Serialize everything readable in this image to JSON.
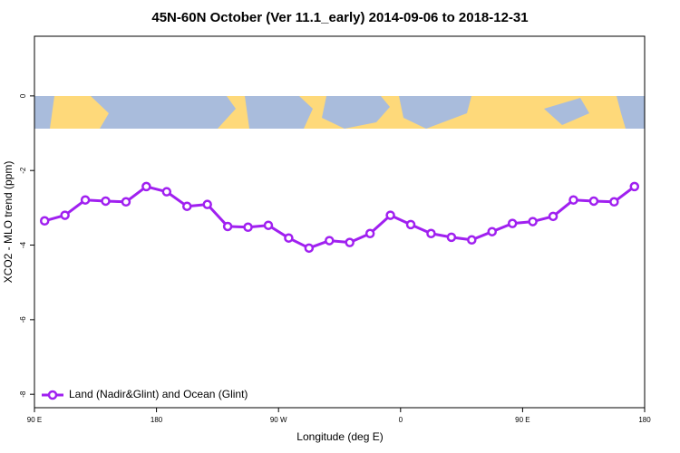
{
  "chart_data": {
    "type": "line",
    "title": "45N-60N October (Ver 11.1_early)   2014-09-06 to 2018-12-31",
    "x_label": "Longitude (deg E)",
    "y_label": "XCO2 - MLO trend (ppm)",
    "x": [
      97.5,
      112.5,
      127.5,
      142.5,
      157.5,
      172.5,
      187.5,
      202.5,
      217.5,
      232.5,
      247.5,
      262.5,
      277.5,
      292.5,
      307.5,
      322.5,
      337.5,
      352.5,
      367.5,
      382.5,
      397.5,
      412.5,
      427.5,
      442.5,
      457.5,
      472.5,
      487.5,
      502.5,
      517.5,
      532.5
    ],
    "series": [
      {
        "name": "Land (Nadir&Glint) and Ocean (Glint)",
        "color": "#a020f0",
        "values": [
          -3.35,
          -3.2,
          -2.79,
          -2.82,
          -2.84,
          -2.43,
          -2.57,
          -2.96,
          -2.91,
          -3.5,
          -3.52,
          -3.47,
          -3.81,
          -4.08,
          -3.88,
          -3.93,
          -3.69,
          -3.2,
          -3.45,
          -3.69,
          -3.79,
          -3.86,
          -3.64,
          -3.42,
          -3.37,
          -3.23,
          -2.79,
          -2.82,
          -2.84,
          -2.43
        ]
      }
    ],
    "xlim": [
      90,
      540
    ],
    "ylim": [
      -8.36,
      1.6
    ],
    "xticks": [
      {
        "value": 90,
        "label": "90 E"
      },
      {
        "value": 180,
        "label": "180"
      },
      {
        "value": 270,
        "label": "90 W"
      },
      {
        "value": 360,
        "label": "0"
      },
      {
        "value": 450,
        "label": "90 E"
      },
      {
        "value": 540,
        "label": "180"
      }
    ],
    "yticks": [
      0,
      -2,
      -4,
      -6,
      -8
    ],
    "legend": "bottom-left"
  }
}
